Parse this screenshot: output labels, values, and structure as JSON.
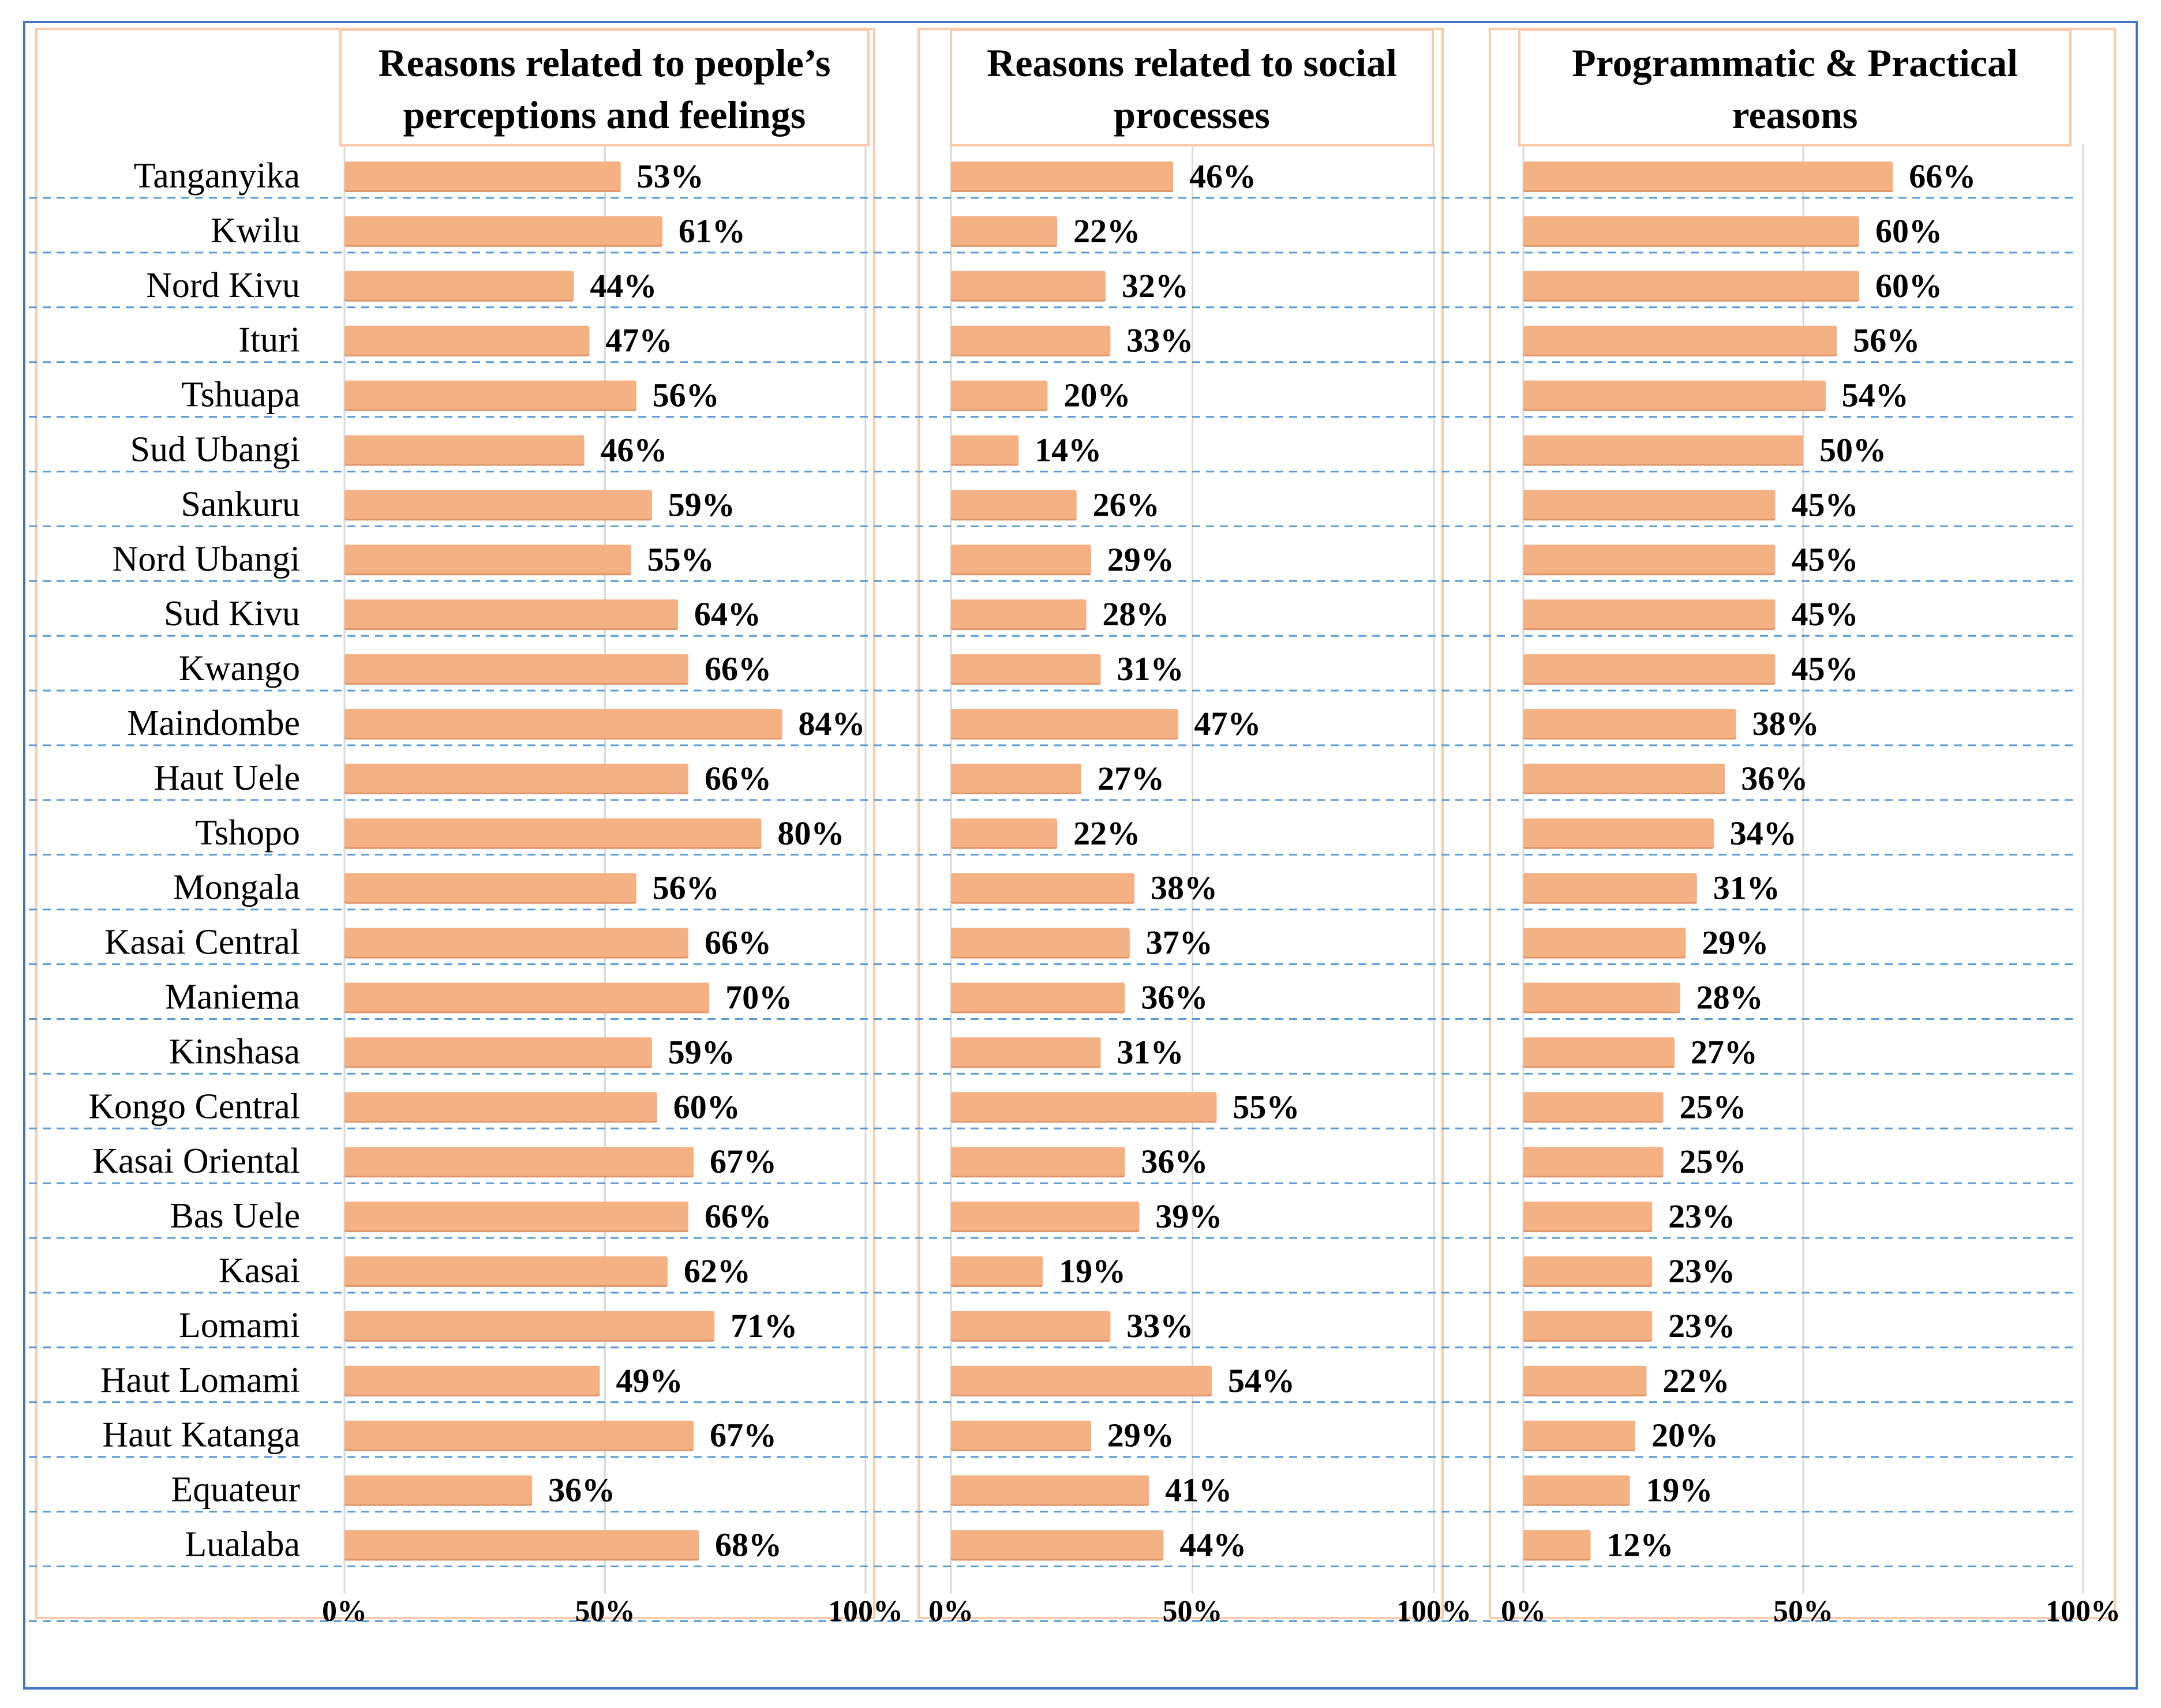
{
  "colors": {
    "bar": "#F4B183",
    "bar_edge": "#E0966A",
    "panel_border": "#F8CBAD",
    "frame": "#4472C4",
    "dash": "#5B9BD5",
    "grid": "#D9D9D9"
  },
  "chart_data": {
    "type": "bar",
    "orientation": "horizontal",
    "categories": [
      "Tanganyika",
      "Kwilu",
      "Nord Kivu",
      "Ituri",
      "Tshuapa",
      "Sud Ubangi",
      "Sankuru",
      "Nord Ubangi",
      "Sud Kivu",
      "Kwango",
      "Maindombe",
      "Haut Uele",
      "Tshopo",
      "Mongala",
      "Kasai Central",
      "Maniema",
      "Kinshasa",
      "Kongo Central",
      "Kasai Oriental",
      "Bas Uele",
      "Kasai",
      "Lomami",
      "Haut Lomami",
      "Haut Katanga",
      "Equateur",
      "Lualaba"
    ],
    "xlim": [
      0,
      100
    ],
    "ticks": [
      "0%",
      "50%",
      "100%"
    ],
    "panels": [
      {
        "title_lines": [
          "Reasons related to people’s",
          "perceptions  and feelings"
        ],
        "values": [
          53,
          61,
          44,
          47,
          56,
          46,
          59,
          55,
          64,
          66,
          84,
          66,
          80,
          56,
          66,
          70,
          59,
          60,
          67,
          66,
          62,
          71,
          49,
          67,
          36,
          68
        ]
      },
      {
        "title_lines": [
          "Reasons related to social",
          "processes"
        ],
        "values": [
          46,
          22,
          32,
          33,
          20,
          14,
          26,
          29,
          28,
          31,
          47,
          27,
          22,
          38,
          37,
          36,
          31,
          55,
          36,
          39,
          19,
          33,
          54,
          29,
          41,
          44
        ]
      },
      {
        "title_lines": [
          "Programmatic  & Practical",
          "reasons"
        ],
        "values": [
          66,
          60,
          60,
          56,
          54,
          50,
          45,
          45,
          45,
          45,
          38,
          36,
          34,
          31,
          29,
          28,
          27,
          25,
          25,
          23,
          23,
          23,
          22,
          20,
          19,
          12
        ]
      }
    ]
  }
}
